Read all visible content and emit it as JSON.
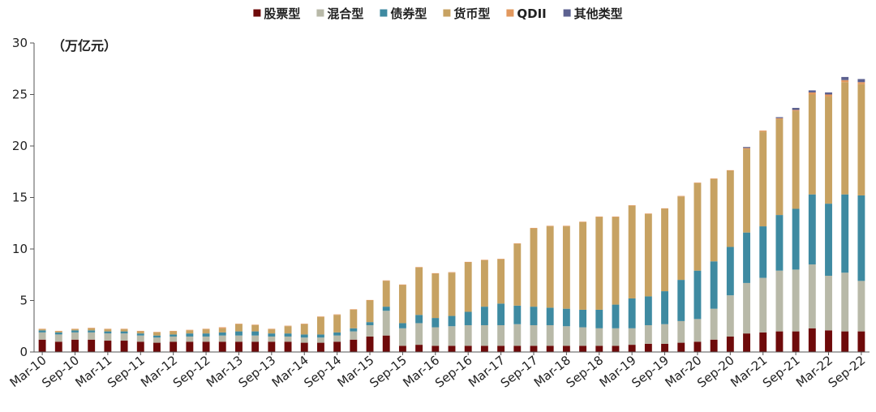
{
  "chart_data": {
    "type": "bar",
    "stacked": true,
    "unit_label": "（万亿元）",
    "ylim": [
      0,
      30
    ],
    "yticks": [
      0,
      5,
      10,
      15,
      20,
      25,
      30
    ],
    "grid": false,
    "legend_position": "top-center",
    "x_tick_labels": [
      "Mar-10",
      "Sep-10",
      "Mar-11",
      "Sep-11",
      "Mar-12",
      "Sep-12",
      "Mar-13",
      "Sep-13",
      "Mar-14",
      "Sep-14",
      "Mar-15",
      "Sep-15",
      "Mar-16",
      "Sep-16",
      "Mar-17",
      "Sep-17",
      "Mar-18",
      "Sep-18",
      "Mar-19",
      "Sep-19",
      "Mar-20",
      "Sep-20",
      "Mar-21",
      "Sep-21",
      "Mar-22",
      "Sep-22"
    ],
    "categories": [
      "Mar-10",
      "Jun-10",
      "Sep-10",
      "Dec-10",
      "Mar-11",
      "Jun-11",
      "Sep-11",
      "Dec-11",
      "Mar-12",
      "Jun-12",
      "Sep-12",
      "Dec-12",
      "Mar-13",
      "Jun-13",
      "Sep-13",
      "Dec-13",
      "Mar-14",
      "Jun-14",
      "Sep-14",
      "Dec-14",
      "Mar-15",
      "Jun-15",
      "Sep-15",
      "Dec-15",
      "Mar-16",
      "Jun-16",
      "Sep-16",
      "Dec-16",
      "Mar-17",
      "Jun-17",
      "Sep-17",
      "Dec-17",
      "Mar-18",
      "Jun-18",
      "Sep-18",
      "Dec-18",
      "Mar-19",
      "Jun-19",
      "Sep-19",
      "Dec-19",
      "Mar-20",
      "Jun-20",
      "Sep-20",
      "Dec-20",
      "Mar-21",
      "Jun-21",
      "Sep-21",
      "Dec-21",
      "Mar-22",
      "Jun-22",
      "Sep-22"
    ],
    "series": [
      {
        "name": "股票型",
        "color": "#6e0a0a",
        "values": [
          1.2,
          1.0,
          1.2,
          1.2,
          1.1,
          1.1,
          1.0,
          0.9,
          1.0,
          1.0,
          1.0,
          1.0,
          1.0,
          1.0,
          1.0,
          1.0,
          0.9,
          0.9,
          1.0,
          1.2,
          1.5,
          1.6,
          0.6,
          0.7,
          0.6,
          0.6,
          0.6,
          0.6,
          0.6,
          0.6,
          0.6,
          0.6,
          0.6,
          0.6,
          0.6,
          0.6,
          0.7,
          0.8,
          0.8,
          0.9,
          1.0,
          1.2,
          1.5,
          1.8,
          1.9,
          2.0,
          2.0,
          2.3,
          2.1,
          2.0,
          2.0
        ]
      },
      {
        "name": "混合型",
        "color": "#b8b9a8",
        "values": [
          0.7,
          0.7,
          0.7,
          0.7,
          0.7,
          0.7,
          0.6,
          0.5,
          0.5,
          0.5,
          0.5,
          0.6,
          0.6,
          0.6,
          0.5,
          0.5,
          0.5,
          0.5,
          0.6,
          0.8,
          1.1,
          2.4,
          1.7,
          2.1,
          1.8,
          1.9,
          2.0,
          2.0,
          2.0,
          2.1,
          2.0,
          2.0,
          1.9,
          1.8,
          1.7,
          1.7,
          1.6,
          1.8,
          1.9,
          2.1,
          2.2,
          3.0,
          4.0,
          4.9,
          5.3,
          5.9,
          6.0,
          6.2,
          5.3,
          5.7,
          4.9
        ]
      },
      {
        "name": "债券型",
        "color": "#3e8aa1",
        "values": [
          0.2,
          0.2,
          0.2,
          0.2,
          0.2,
          0.2,
          0.2,
          0.2,
          0.2,
          0.3,
          0.3,
          0.3,
          0.4,
          0.4,
          0.3,
          0.3,
          0.3,
          0.3,
          0.3,
          0.3,
          0.3,
          0.4,
          0.5,
          0.8,
          0.9,
          1.0,
          1.3,
          1.8,
          2.1,
          1.8,
          1.8,
          1.7,
          1.7,
          1.7,
          1.8,
          2.3,
          2.9,
          2.8,
          3.2,
          4.0,
          4.7,
          4.6,
          4.7,
          4.9,
          5.0,
          5.4,
          5.9,
          6.8,
          7.0,
          7.6,
          8.3
        ]
      },
      {
        "name": "货币型",
        "color": "#c7a262",
        "values": [
          0.1,
          0.1,
          0.1,
          0.2,
          0.2,
          0.2,
          0.2,
          0.3,
          0.3,
          0.3,
          0.4,
          0.4,
          0.7,
          0.6,
          0.4,
          0.7,
          1.0,
          1.7,
          1.7,
          1.8,
          2.1,
          2.5,
          3.7,
          4.6,
          4.3,
          4.2,
          4.8,
          4.5,
          4.3,
          6.0,
          7.6,
          7.9,
          8.0,
          8.5,
          9.0,
          8.5,
          9.0,
          8.0,
          8.0,
          8.1,
          8.5,
          8.0,
          7.4,
          8.1,
          9.2,
          9.3,
          9.5,
          9.7,
          10.4,
          10.9,
          10.8
        ]
      },
      {
        "name": "QDII",
        "color": "#e2985e",
        "values": [
          0.05,
          0.05,
          0.05,
          0.05,
          0.05,
          0.05,
          0.05,
          0.05,
          0.05,
          0.05,
          0.05,
          0.1,
          0.05,
          0.05,
          0.05,
          0.05,
          0.05,
          0.05,
          0.05,
          0.05,
          0.05,
          0.05,
          0.05,
          0.05,
          0.05,
          0.05,
          0.05,
          0.05,
          0.05,
          0.05,
          0.05,
          0.05,
          0.05,
          0.05,
          0.05,
          0.05,
          0.05,
          0.05,
          0.05,
          0.05,
          0.05,
          0.05,
          0.05,
          0.1,
          0.1,
          0.1,
          0.1,
          0.2,
          0.2,
          0.2,
          0.2
        ]
      },
      {
        "name": "其他类型",
        "color": "#5c6190",
        "values": [
          0,
          0,
          0,
          0,
          0,
          0,
          0,
          0,
          0,
          0,
          0,
          0,
          0,
          0,
          0,
          0,
          0,
          0,
          0,
          0,
          0,
          0,
          0,
          0,
          0,
          0,
          0,
          0,
          0,
          0,
          0,
          0,
          0,
          0,
          0,
          0,
          0,
          0,
          0,
          0,
          0,
          0,
          0,
          0.1,
          0,
          0.1,
          0.2,
          0.2,
          0.2,
          0.3,
          0.3
        ]
      }
    ]
  }
}
